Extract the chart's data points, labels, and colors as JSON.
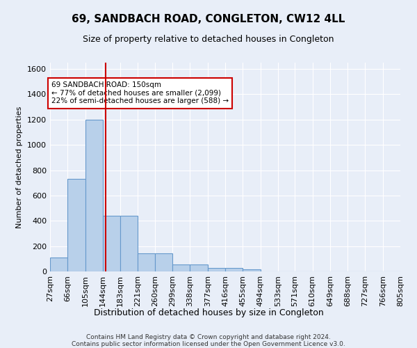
{
  "title1": "69, SANDBACH ROAD, CONGLETON, CW12 4LL",
  "title2": "Size of property relative to detached houses in Congleton",
  "xlabel": "Distribution of detached houses by size in Congleton",
  "ylabel": "Number of detached properties",
  "bar_color": "#b8d0ea",
  "bar_edge_color": "#6699cc",
  "background_color": "#e8eef8",
  "grid_color": "#ffffff",
  "vline_color": "#cc0000",
  "vline_x": 150,
  "annotation_text": "69 SANDBACH ROAD: 150sqm\n← 77% of detached houses are smaller (2,099)\n22% of semi-detached houses are larger (588) →",
  "annotation_box_color": "#ffffff",
  "annotation_box_edge": "#cc0000",
  "footnote": "Contains HM Land Registry data © Crown copyright and database right 2024.\nContains public sector information licensed under the Open Government Licence v3.0.",
  "bin_edges": [
    27,
    66,
    105,
    144,
    183,
    221,
    260,
    299,
    338,
    377,
    416,
    455,
    494,
    533,
    571,
    610,
    649,
    688,
    727,
    766,
    805
  ],
  "bar_heights": [
    110,
    730,
    1200,
    440,
    440,
    145,
    145,
    55,
    55,
    30,
    30,
    15,
    0,
    0,
    0,
    0,
    0,
    0,
    0,
    0
  ],
  "ylim": [
    0,
    1650
  ],
  "yticks": [
    0,
    200,
    400,
    600,
    800,
    1000,
    1200,
    1400,
    1600
  ]
}
